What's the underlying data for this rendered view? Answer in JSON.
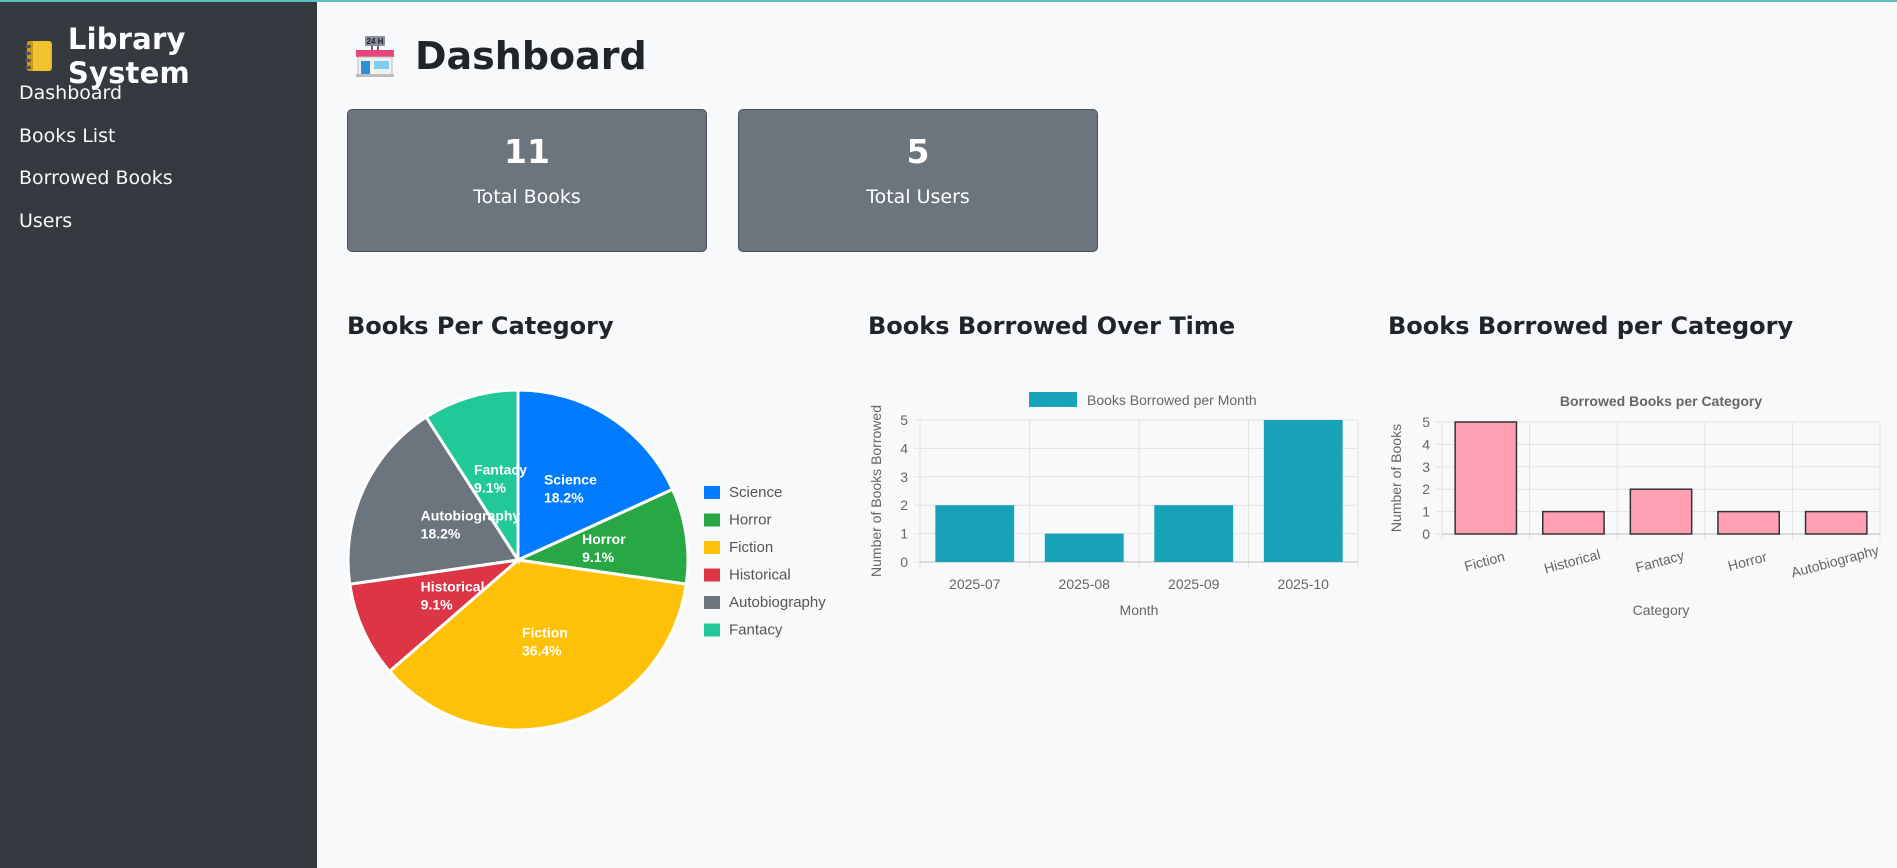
{
  "sidebar": {
    "title": "Library System",
    "items": [
      {
        "label": "Dashboard"
      },
      {
        "label": "Books List"
      },
      {
        "label": "Borrowed Books"
      },
      {
        "label": "Users"
      }
    ]
  },
  "header": {
    "title": "Dashboard",
    "icon": "convenience-store-24h-icon"
  },
  "stats": [
    {
      "value": "11",
      "label": "Total Books"
    },
    {
      "value": "5",
      "label": "Total Users"
    }
  ],
  "sections": {
    "pie_title": "Books Per Category",
    "line_title": "Books Borrowed Over Time",
    "bar_title": "Books Borrowed per Category"
  },
  "colors": {
    "sidebar_bg": "#343a40",
    "card_bg": "#6c757d",
    "page_bg": "#f8f9fa"
  },
  "chart_data": [
    {
      "type": "pie",
      "categories": [
        "Science",
        "Horror",
        "Fiction",
        "Historical",
        "Autobiography",
        "Fantacy"
      ],
      "values": [
        2,
        1,
        4,
        1,
        2,
        1
      ],
      "data_labels": [
        "18.2%",
        "9.1%",
        "36.4%",
        "9.1%",
        "18.2%",
        "9.1%"
      ],
      "colors": [
        "#007bff",
        "#28a745",
        "#ffc107",
        "#dc3545",
        "#6c757d",
        "#20c997"
      ],
      "legend": "right"
    },
    {
      "type": "bar",
      "categories": [
        "2025-07",
        "2025-08",
        "2025-09",
        "2025-10"
      ],
      "series": [
        {
          "name": "Books Borrowed per Month",
          "values": [
            2,
            1,
            2,
            5
          ]
        }
      ],
      "xlabel": "Month",
      "ylabel": "Number of Books Borrowed",
      "ylim": [
        0,
        5
      ],
      "yticks": [
        "0",
        "1",
        "2",
        "3",
        "4",
        "5"
      ],
      "grid": true,
      "legend": "top",
      "color": "#17a2b8"
    },
    {
      "type": "bar",
      "title": "Borrowed Books per Category",
      "categories": [
        "Fiction",
        "Historical",
        "Fantacy",
        "Horror",
        "Autobiography"
      ],
      "values": [
        5,
        1,
        2,
        1,
        1
      ],
      "xlabel": "Category",
      "ylabel": "Number of Books",
      "ylim": [
        0,
        5
      ],
      "yticks": [
        "0",
        "1",
        "2",
        "3",
        "4",
        "5"
      ],
      "grid": true,
      "color": "#ff9fb3"
    }
  ]
}
